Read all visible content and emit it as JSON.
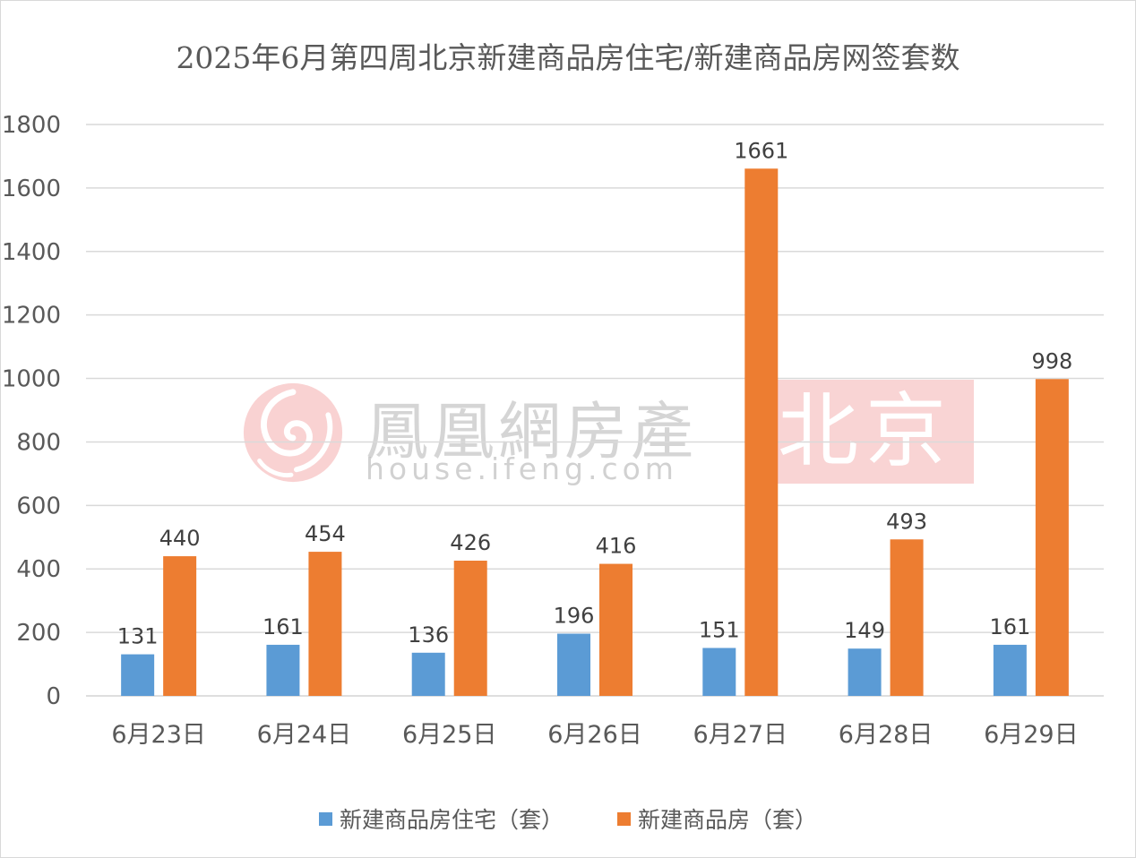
{
  "chart_data": {
    "type": "bar",
    "title": "2025年6月第四周北京新建商品房住宅/新建商品房网签套数",
    "categories": [
      "6月23日",
      "6月24日",
      "6月25日",
      "6月26日",
      "6月27日",
      "6月28日",
      "6月29日"
    ],
    "series": [
      {
        "name": "新建商品房住宅（套）",
        "color": "#5b9bd5",
        "values": [
          131,
          161,
          136,
          196,
          151,
          149,
          161
        ]
      },
      {
        "name": "新建商品房（套）",
        "color": "#ed7d31",
        "values": [
          440,
          454,
          426,
          416,
          1661,
          493,
          998
        ]
      }
    ],
    "ylim": [
      0,
      1800
    ],
    "yticks": [
      0,
      200,
      400,
      600,
      800,
      1000,
      1200,
      1400,
      1600,
      1800
    ],
    "grid": true,
    "legend_position": "bottom",
    "data_labels": true
  },
  "watermark": {
    "brand": "鳳凰網房產",
    "url": "house.ifeng.com",
    "city": "北京",
    "logo_icon": "ifeng-phoenix-logo-icon"
  }
}
